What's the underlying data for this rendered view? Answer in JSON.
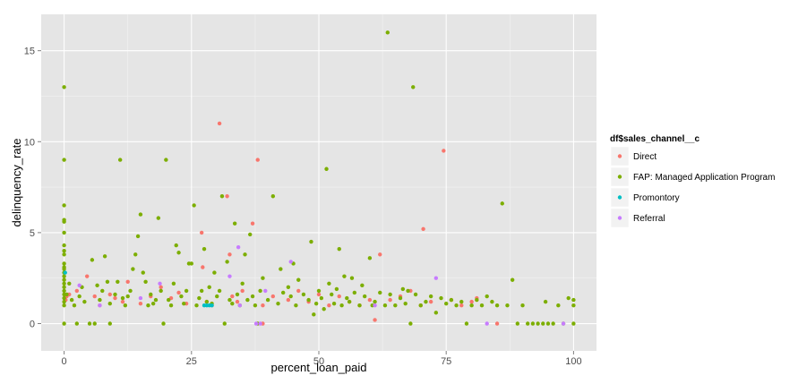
{
  "chart_data": {
    "type": "scatter",
    "title": "",
    "xlabel": "percent_loan_paid",
    "ylabel": "delinquency_rate",
    "xlim": [
      -4.5,
      104.5
    ],
    "ylim": [
      -1.5,
      17
    ],
    "x_ticks": [
      0,
      25,
      50,
      75,
      100
    ],
    "x_tick_labels": [
      "0",
      "25",
      "50",
      "75",
      "100"
    ],
    "y_ticks": [
      0,
      5,
      10,
      15
    ],
    "y_tick_labels": [
      "0",
      "5",
      "10",
      "15"
    ],
    "grid": true,
    "legend": {
      "title": "df$sales_channel__c",
      "position": "right"
    },
    "series": [
      {
        "name": "Direct",
        "color": "#F8766D",
        "points": [
          [
            0.3,
            1.3
          ],
          [
            0.5,
            1.5
          ],
          [
            1,
            1.6
          ],
          [
            2.5,
            1.8
          ],
          [
            4.5,
            2.6
          ],
          [
            6,
            1.5
          ],
          [
            7,
            1
          ],
          [
            9,
            1.6
          ],
          [
            10,
            1.4
          ],
          [
            11.5,
            1.2
          ],
          [
            12.5,
            2.3
          ],
          [
            15,
            1.1
          ],
          [
            17,
            1.5
          ],
          [
            19,
            2
          ],
          [
            21,
            1.4
          ],
          [
            22.5,
            1.7
          ],
          [
            24,
            1.1
          ],
          [
            27,
            5
          ],
          [
            27.2,
            3.1
          ],
          [
            28,
            1.2
          ],
          [
            29,
            1
          ],
          [
            30.5,
            11
          ],
          [
            32,
            7
          ],
          [
            32.5,
            3.8
          ],
          [
            33,
            1.5
          ],
          [
            34,
            1.2
          ],
          [
            35,
            1.8
          ],
          [
            37,
            5.5
          ],
          [
            38,
            9
          ],
          [
            39,
            1
          ],
          [
            39,
            0
          ],
          [
            41,
            1.5
          ],
          [
            44,
            1.3
          ],
          [
            46,
            1.8
          ],
          [
            48,
            1.2
          ],
          [
            50,
            1.6
          ],
          [
            52,
            1
          ],
          [
            54,
            1.5
          ],
          [
            56,
            1.2
          ],
          [
            58,
            1
          ],
          [
            60,
            1.3
          ],
          [
            61,
            0.2
          ],
          [
            62,
            3.8
          ],
          [
            64,
            1.3
          ],
          [
            66,
            1.5
          ],
          [
            68,
            1.8
          ],
          [
            70,
            1
          ],
          [
            70.5,
            5.2
          ],
          [
            72,
            1.2
          ],
          [
            74.5,
            9.5
          ],
          [
            76,
            1.3
          ],
          [
            78,
            1
          ],
          [
            80,
            1.2
          ],
          [
            81,
            1.4
          ],
          [
            85,
            0
          ]
        ]
      },
      {
        "name": "FAP: Managed Application Program",
        "color": "#7CAE00",
        "points": [
          [
            0,
            13
          ],
          [
            0,
            9
          ],
          [
            0,
            6.5
          ],
          [
            0,
            5.7
          ],
          [
            0,
            5.6
          ],
          [
            0,
            5
          ],
          [
            0,
            4.3
          ],
          [
            0,
            4
          ],
          [
            0,
            3.8
          ],
          [
            0,
            3.3
          ],
          [
            0,
            3.1
          ],
          [
            0,
            3
          ],
          [
            0,
            2.8
          ],
          [
            0,
            2.6
          ],
          [
            0,
            2.4
          ],
          [
            0,
            2.2
          ],
          [
            0,
            2
          ],
          [
            0,
            1.8
          ],
          [
            0,
            1.6
          ],
          [
            0,
            1.4
          ],
          [
            0,
            1.2
          ],
          [
            0,
            1
          ],
          [
            0,
            0
          ],
          [
            0.5,
            1.6
          ],
          [
            1,
            2.2
          ],
          [
            1.5,
            1.3
          ],
          [
            2,
            1
          ],
          [
            2.5,
            0
          ],
          [
            3,
            1.5
          ],
          [
            3.5,
            2
          ],
          [
            4,
            1.2
          ],
          [
            5,
            0
          ],
          [
            5.5,
            3.5
          ],
          [
            6,
            0
          ],
          [
            6.5,
            2.1
          ],
          [
            7,
            1.3
          ],
          [
            7.5,
            1.8
          ],
          [
            8,
            3.7
          ],
          [
            8.5,
            2.3
          ],
          [
            9,
            1.1
          ],
          [
            9,
            0
          ],
          [
            10,
            1.6
          ],
          [
            10.5,
            2.3
          ],
          [
            11,
            9
          ],
          [
            11.5,
            1.4
          ],
          [
            12,
            1
          ],
          [
            12.5,
            1.5
          ],
          [
            13,
            1.8
          ],
          [
            13.5,
            3
          ],
          [
            14,
            3.8
          ],
          [
            14.5,
            4.8
          ],
          [
            15,
            6
          ],
          [
            15.5,
            2.8
          ],
          [
            16,
            2.3
          ],
          [
            16.5,
            1
          ],
          [
            17,
            1.6
          ],
          [
            17.5,
            1.1
          ],
          [
            18,
            1.3
          ],
          [
            18.5,
            5.8
          ],
          [
            19,
            1.8
          ],
          [
            19.5,
            0
          ],
          [
            20,
            9
          ],
          [
            20.5,
            1.3
          ],
          [
            21,
            1
          ],
          [
            21.5,
            2.2
          ],
          [
            22,
            4.3
          ],
          [
            22.5,
            3.9
          ],
          [
            23,
            1.5
          ],
          [
            23.5,
            1.1
          ],
          [
            24,
            1.8
          ],
          [
            24.5,
            3.3
          ],
          [
            25,
            3.3
          ],
          [
            25.5,
            6.5
          ],
          [
            26,
            1
          ],
          [
            26.5,
            1.4
          ],
          [
            27,
            1.8
          ],
          [
            27.5,
            4.1
          ],
          [
            28,
            1.2
          ],
          [
            28.5,
            2
          ],
          [
            29,
            1.1
          ],
          [
            29.5,
            2.8
          ],
          [
            30,
            1.5
          ],
          [
            30.5,
            1.8
          ],
          [
            31,
            7
          ],
          [
            31.5,
            0
          ],
          [
            32,
            3.4
          ],
          [
            32.5,
            1.3
          ],
          [
            33,
            1.1
          ],
          [
            33.5,
            5.5
          ],
          [
            34,
            1.6
          ],
          [
            34.5,
            1
          ],
          [
            35,
            2.2
          ],
          [
            35.5,
            3.8
          ],
          [
            36,
            1.3
          ],
          [
            36.5,
            4.9
          ],
          [
            37,
            1.5
          ],
          [
            37.5,
            1
          ],
          [
            38,
            0
          ],
          [
            38.5,
            1.8
          ],
          [
            39,
            2.5
          ],
          [
            40,
            1.3
          ],
          [
            41,
            7
          ],
          [
            42,
            1.1
          ],
          [
            42.5,
            3
          ],
          [
            43,
            1.7
          ],
          [
            44,
            2
          ],
          [
            44.5,
            1.5
          ],
          [
            45,
            3.3
          ],
          [
            45.5,
            1
          ],
          [
            46,
            2.4
          ],
          [
            47,
            1.6
          ],
          [
            48,
            1.3
          ],
          [
            48.5,
            4.5
          ],
          [
            49,
            0.5
          ],
          [
            49.5,
            1.1
          ],
          [
            50,
            1.8
          ],
          [
            50.5,
            1.4
          ],
          [
            51,
            0.8
          ],
          [
            51.5,
            8.5
          ],
          [
            52,
            2.2
          ],
          [
            52.5,
            1.6
          ],
          [
            53,
            1.1
          ],
          [
            53.5,
            1.9
          ],
          [
            54,
            4.1
          ],
          [
            54.5,
            1
          ],
          [
            55,
            2.6
          ],
          [
            55.5,
            1.4
          ],
          [
            56,
            1.2
          ],
          [
            56.5,
            2.5
          ],
          [
            57,
            1.7
          ],
          [
            58,
            1
          ],
          [
            58.5,
            2.1
          ],
          [
            59,
            1.5
          ],
          [
            60,
            3.6
          ],
          [
            60.5,
            1
          ],
          [
            61,
            1.2
          ],
          [
            62,
            1.7
          ],
          [
            63,
            1
          ],
          [
            63.5,
            16
          ],
          [
            64,
            1.6
          ],
          [
            65,
            1
          ],
          [
            66,
            1.4
          ],
          [
            66.5,
            1.9
          ],
          [
            67,
            1.1
          ],
          [
            67.5,
            1.8
          ],
          [
            68,
            0
          ],
          [
            68.5,
            13
          ],
          [
            69,
            1.6
          ],
          [
            70,
            1
          ],
          [
            71,
            1.2
          ],
          [
            72,
            1.5
          ],
          [
            73,
            0.6
          ],
          [
            74,
            1.4
          ],
          [
            75,
            1.1
          ],
          [
            76,
            1.3
          ],
          [
            77,
            1
          ],
          [
            78,
            1.2
          ],
          [
            79,
            0
          ],
          [
            80,
            1
          ],
          [
            81,
            1.3
          ],
          [
            82,
            1
          ],
          [
            83,
            1.5
          ],
          [
            84,
            1.2
          ],
          [
            85,
            1
          ],
          [
            86,
            6.6
          ],
          [
            87,
            1
          ],
          [
            88,
            2.4
          ],
          [
            89,
            0
          ],
          [
            90,
            1
          ],
          [
            91,
            0
          ],
          [
            92,
            0
          ],
          [
            93,
            0
          ],
          [
            94,
            0
          ],
          [
            94.5,
            1.2
          ],
          [
            95,
            0
          ],
          [
            96,
            0
          ],
          [
            97,
            1
          ],
          [
            98,
            0
          ],
          [
            99,
            1.4
          ],
          [
            100,
            1.3
          ],
          [
            100,
            1
          ],
          [
            100,
            0
          ]
        ]
      },
      {
        "name": "Promontory",
        "color": "#00BFC4",
        "points": [
          [
            0.2,
            2.8
          ],
          [
            27.5,
            1
          ],
          [
            28,
            1
          ],
          [
            28.5,
            1
          ],
          [
            29,
            1
          ]
        ]
      },
      {
        "name": "Referral",
        "color": "#C77CFF",
        "points": [
          [
            3,
            2.1
          ],
          [
            7,
            1
          ],
          [
            15,
            1.4
          ],
          [
            18.8,
            2.2
          ],
          [
            32.5,
            2.6
          ],
          [
            34.2,
            4.2
          ],
          [
            34.5,
            1
          ],
          [
            37.7,
            0
          ],
          [
            38.5,
            0
          ],
          [
            39.5,
            1.8
          ],
          [
            44.5,
            3.4
          ],
          [
            61,
            1
          ],
          [
            73,
            2.5
          ],
          [
            83,
            0
          ],
          [
            98,
            0
          ]
        ]
      }
    ]
  }
}
